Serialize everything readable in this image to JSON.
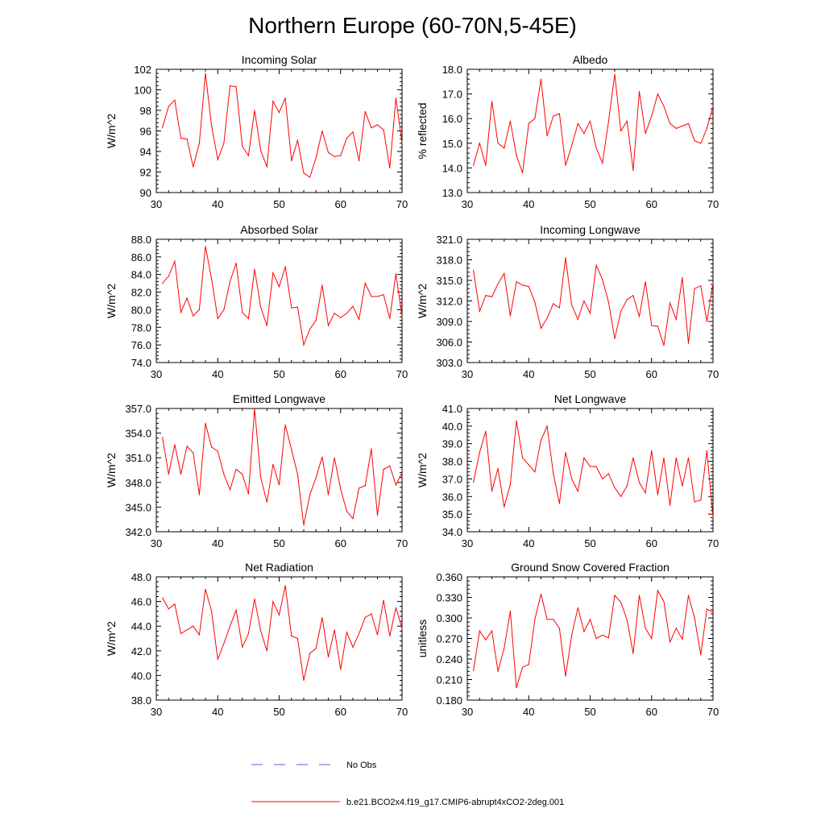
{
  "figure": {
    "title": "Northern Europe (60-70N,5-45E)",
    "line_color": "#ff0000",
    "obs_line_color": "#5a5adc"
  },
  "legend": {
    "obs_label": "No Obs",
    "model_label": "b.e21.BCO2x4.f19_g17.CMIP6-abrupt4xCO2-2deg.001"
  },
  "chart_data": [
    {
      "type": "line",
      "title": "Incoming Solar",
      "xlabel": "",
      "ylabel": "W/m^2",
      "xlim": [
        30,
        70
      ],
      "ylim": [
        90,
        102
      ],
      "xticks": [
        30,
        40,
        50,
        60,
        70
      ],
      "yticks": [
        "90",
        "92",
        "94",
        "96",
        "98",
        "100",
        "102"
      ],
      "x": [
        31,
        32,
        33,
        34,
        35,
        36,
        37,
        38,
        39,
        40,
        41,
        42,
        43,
        44,
        45,
        46,
        47,
        48,
        49,
        50,
        51,
        52,
        53,
        54,
        55,
        56,
        57,
        58,
        59,
        60,
        61,
        62,
        63,
        64,
        65,
        66,
        67,
        68,
        69,
        70
      ],
      "values": [
        96.3,
        98.4,
        99.0,
        95.3,
        95.2,
        92.5,
        94.8,
        101.6,
        96.5,
        93.2,
        94.8,
        100.4,
        100.3,
        94.5,
        93.6,
        98.0,
        94.1,
        92.5,
        98.9,
        97.8,
        99.2,
        93.1,
        95.1,
        91.9,
        91.5,
        93.4,
        96.0,
        93.9,
        93.5,
        93.6,
        95.3,
        95.9,
        93.1,
        97.9,
        96.3,
        96.6,
        96.1,
        92.4,
        99.2,
        94.8
      ]
    },
    {
      "type": "line",
      "title": "Albedo",
      "xlabel": "",
      "ylabel": "% reflected",
      "xlim": [
        30,
        70
      ],
      "ylim": [
        13.0,
        18.0
      ],
      "xticks": [
        30,
        40,
        50,
        60,
        70
      ],
      "yticks": [
        "13.0",
        "14.0",
        "15.0",
        "16.0",
        "17.0",
        "18.0"
      ],
      "x": [
        31,
        32,
        33,
        34,
        35,
        36,
        37,
        38,
        39,
        40,
        41,
        42,
        43,
        44,
        45,
        46,
        47,
        48,
        49,
        50,
        51,
        52,
        53,
        54,
        55,
        56,
        57,
        58,
        59,
        60,
        61,
        62,
        63,
        64,
        65,
        66,
        67,
        68,
        69,
        70
      ],
      "values": [
        14.1,
        15.0,
        14.1,
        16.7,
        15.0,
        14.8,
        15.9,
        14.5,
        13.8,
        15.8,
        16.0,
        17.6,
        15.3,
        16.1,
        16.2,
        14.1,
        14.9,
        15.8,
        15.4,
        15.9,
        14.8,
        14.2,
        15.9,
        17.8,
        15.5,
        15.9,
        13.9,
        17.1,
        15.4,
        16.1,
        17.0,
        16.5,
        15.8,
        15.6,
        15.7,
        15.8,
        15.1,
        15.0,
        15.6,
        16.5
      ]
    },
    {
      "type": "line",
      "title": "Absorbed Solar",
      "xlabel": "",
      "ylabel": "W/m^2",
      "xlim": [
        30,
        70
      ],
      "ylim": [
        74.0,
        88.0
      ],
      "xticks": [
        30,
        40,
        50,
        60,
        70
      ],
      "yticks": [
        "74.0",
        "76.0",
        "78.0",
        "80.0",
        "82.0",
        "84.0",
        "86.0",
        "88.0"
      ],
      "x": [
        31,
        32,
        33,
        34,
        35,
        36,
        37,
        38,
        39,
        40,
        41,
        42,
        43,
        44,
        45,
        46,
        47,
        48,
        49,
        50,
        51,
        52,
        53,
        54,
        55,
        56,
        57,
        58,
        59,
        60,
        61,
        62,
        63,
        64,
        65,
        66,
        67,
        68,
        69,
        70
      ],
      "values": [
        83.0,
        83.8,
        85.5,
        79.7,
        81.3,
        79.3,
        80.0,
        87.2,
        83.5,
        79.0,
        80.0,
        83.2,
        85.3,
        79.7,
        79.0,
        84.6,
        80.3,
        78.2,
        84.2,
        82.6,
        84.9,
        80.2,
        80.3,
        76.0,
        77.8,
        78.8,
        82.8,
        78.2,
        79.6,
        79.1,
        79.6,
        80.4,
        78.9,
        83.0,
        81.5,
        81.5,
        81.7,
        79.0,
        84.1,
        79.2
      ]
    },
    {
      "type": "line",
      "title": "Incoming Longwave",
      "xlabel": "",
      "ylabel": "W/m^2",
      "xlim": [
        30,
        70
      ],
      "ylim": [
        303.0,
        321.0
      ],
      "xticks": [
        30,
        40,
        50,
        60,
        70
      ],
      "yticks": [
        "303.0",
        "306.0",
        "309.0",
        "312.0",
        "315.0",
        "318.0",
        "321.0"
      ],
      "x": [
        31,
        32,
        33,
        34,
        35,
        36,
        37,
        38,
        39,
        40,
        41,
        42,
        43,
        44,
        45,
        46,
        47,
        48,
        49,
        50,
        51,
        52,
        53,
        54,
        55,
        56,
        57,
        58,
        59,
        60,
        61,
        62,
        63,
        64,
        65,
        66,
        67,
        68,
        69,
        70
      ],
      "values": [
        316.5,
        310.5,
        312.8,
        312.6,
        314.5,
        316.0,
        309.8,
        314.8,
        314.3,
        314.1,
        311.8,
        308.0,
        309.5,
        311.6,
        311.0,
        318.3,
        311.4,
        309.3,
        312.0,
        310.2,
        317.2,
        315.1,
        311.8,
        306.5,
        310.5,
        312.2,
        312.8,
        309.7,
        314.8,
        308.4,
        308.3,
        305.5,
        311.7,
        309.3,
        315.4,
        305.8,
        313.8,
        314.2,
        309.0,
        314.6
      ]
    },
    {
      "type": "line",
      "title": "Emitted Longwave",
      "xlabel": "",
      "ylabel": "W/m^2",
      "xlim": [
        30,
        70
      ],
      "ylim": [
        342.0,
        357.0
      ],
      "xticks": [
        30,
        40,
        50,
        60,
        70
      ],
      "yticks": [
        "342.0",
        "345.0",
        "348.0",
        "351.0",
        "354.0",
        "357.0"
      ],
      "x": [
        31,
        32,
        33,
        34,
        35,
        36,
        37,
        38,
        39,
        40,
        41,
        42,
        43,
        44,
        45,
        46,
        47,
        48,
        49,
        50,
        51,
        52,
        53,
        54,
        55,
        56,
        57,
        58,
        59,
        60,
        61,
        62,
        63,
        64,
        65,
        66,
        67,
        68,
        69,
        70
      ],
      "values": [
        353.5,
        349.0,
        352.6,
        349.0,
        352.4,
        351.6,
        346.5,
        355.2,
        352.3,
        351.8,
        349.0,
        347.1,
        349.6,
        349.0,
        346.6,
        357.0,
        348.6,
        345.6,
        350.2,
        347.7,
        355.0,
        352.0,
        349.0,
        342.8,
        346.5,
        348.6,
        351.1,
        346.5,
        351.0,
        347.2,
        344.5,
        343.6,
        347.3,
        347.6,
        352.1,
        344.0,
        349.6,
        350.0,
        347.7,
        349.2
      ]
    },
    {
      "type": "line",
      "title": "Net Longwave",
      "xlabel": "",
      "ylabel": "W/m^2",
      "xlim": [
        30,
        70
      ],
      "ylim": [
        34.0,
        41.0
      ],
      "xticks": [
        30,
        40,
        50,
        60,
        70
      ],
      "yticks": [
        "34.0",
        "35.0",
        "36.0",
        "37.0",
        "38.0",
        "39.0",
        "40.0",
        "41.0"
      ],
      "x": [
        31,
        32,
        33,
        34,
        35,
        36,
        37,
        38,
        39,
        40,
        41,
        42,
        43,
        44,
        45,
        46,
        47,
        48,
        49,
        50,
        51,
        52,
        53,
        54,
        55,
        56,
        57,
        58,
        59,
        60,
        61,
        62,
        63,
        64,
        65,
        66,
        67,
        68,
        69,
        70
      ],
      "values": [
        36.8,
        38.5,
        39.7,
        36.3,
        37.6,
        35.4,
        36.7,
        40.3,
        38.2,
        37.8,
        37.4,
        39.2,
        40.0,
        37.3,
        35.6,
        38.5,
        37.0,
        36.3,
        38.2,
        37.7,
        37.7,
        37.0,
        37.3,
        36.5,
        36.0,
        36.6,
        38.2,
        36.8,
        36.2,
        38.6,
        36.1,
        38.2,
        35.5,
        38.2,
        36.6,
        38.2,
        35.7,
        35.8,
        38.6,
        34.8
      ]
    },
    {
      "type": "line",
      "title": "Net Radiation",
      "xlabel": "",
      "ylabel": "W/m^2",
      "xlim": [
        30,
        70
      ],
      "ylim": [
        38.0,
        48.0
      ],
      "xticks": [
        30,
        40,
        50,
        60,
        70
      ],
      "yticks": [
        "38.0",
        "40.0",
        "42.0",
        "44.0",
        "46.0",
        "48.0"
      ],
      "x": [
        31,
        32,
        33,
        34,
        35,
        36,
        37,
        38,
        39,
        40,
        41,
        42,
        43,
        44,
        45,
        46,
        47,
        48,
        49,
        50,
        51,
        52,
        53,
        54,
        55,
        56,
        57,
        58,
        59,
        60,
        61,
        62,
        63,
        64,
        65,
        66,
        67,
        68,
        69,
        70
      ],
      "values": [
        46.3,
        45.4,
        45.8,
        43.4,
        43.7,
        44.0,
        43.3,
        47.0,
        45.2,
        41.3,
        42.6,
        44.0,
        45.3,
        42.3,
        43.4,
        46.2,
        43.6,
        42.0,
        46.0,
        44.9,
        47.3,
        43.2,
        43.0,
        39.6,
        41.8,
        42.2,
        44.7,
        41.5,
        43.7,
        40.5,
        43.5,
        42.3,
        43.4,
        44.7,
        45.0,
        43.3,
        46.1,
        43.2,
        45.5,
        43.8
      ]
    },
    {
      "type": "line",
      "title": "Ground Snow Covered Fraction",
      "xlabel": "",
      "ylabel": "unitless",
      "xlim": [
        30,
        70
      ],
      "ylim": [
        0.18,
        0.36
      ],
      "xticks": [
        30,
        40,
        50,
        60,
        70
      ],
      "yticks": [
        "0.180",
        "0.210",
        "0.240",
        "0.270",
        "0.300",
        "0.330",
        "0.360"
      ],
      "x": [
        31,
        32,
        33,
        34,
        35,
        36,
        37,
        38,
        39,
        40,
        41,
        42,
        43,
        44,
        45,
        46,
        47,
        48,
        49,
        50,
        51,
        52,
        53,
        54,
        55,
        56,
        57,
        58,
        59,
        60,
        61,
        62,
        63,
        64,
        65,
        66,
        67,
        68,
        69,
        70
      ],
      "values": [
        0.223,
        0.281,
        0.268,
        0.281,
        0.222,
        0.256,
        0.31,
        0.198,
        0.228,
        0.232,
        0.298,
        0.335,
        0.298,
        0.298,
        0.285,
        0.215,
        0.275,
        0.315,
        0.28,
        0.298,
        0.27,
        0.275,
        0.271,
        0.333,
        0.323,
        0.297,
        0.248,
        0.333,
        0.285,
        0.27,
        0.34,
        0.324,
        0.265,
        0.285,
        0.269,
        0.333,
        0.3,
        0.246,
        0.313,
        0.308
      ]
    }
  ]
}
